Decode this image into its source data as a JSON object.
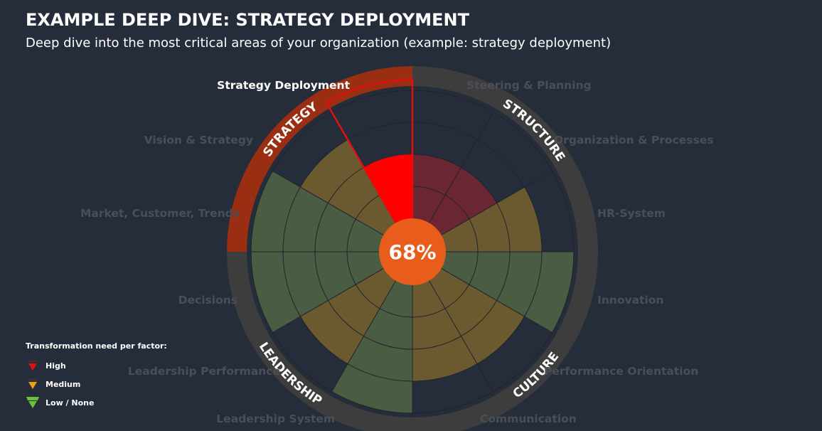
{
  "header": {
    "title": "EXAMPLE DEEP DIVE: STRATEGY DEPLOYMENT",
    "subtitle": "Deep dive into the most critical areas of your organization (example: strategy deployment)"
  },
  "legend": {
    "title": "Transformation need per factor:",
    "items": [
      {
        "label": "High",
        "color": "#e01010"
      },
      {
        "label": "Medium",
        "color": "#f0a010"
      },
      {
        "label": "Low / None",
        "color": "#6cbf3a"
      }
    ]
  },
  "colors": {
    "background": "#262d3a",
    "ring": "#3d3d3d",
    "strategy_ring": "#9a2e12",
    "center": "#e85d1c",
    "high": "#ff0000",
    "high_dim": "#6b2633",
    "medium": "#6b5a30",
    "low": "#4a5c42",
    "highlight_border": "#e01010"
  },
  "chart_data": {
    "type": "polar-area",
    "center_value": "68%",
    "selected_factor": "Strategy Deployment",
    "ring_levels": 4,
    "groups": [
      {
        "name": "STRATEGY",
        "factors": [
          "Market, Customer, Trends",
          "Vision & Strategy",
          "Strategy Deployment"
        ]
      },
      {
        "name": "STRUCTURE",
        "factors": [
          "Steering & Planning",
          "Organization & Processes",
          "HR-System"
        ]
      },
      {
        "name": "CULTURE",
        "factors": [
          "Innovation",
          "Performance Orientation",
          "Communication"
        ]
      },
      {
        "name": "LEADERSHIP",
        "factors": [
          "Leadership System",
          "Leadership Performance",
          "Decisions"
        ]
      }
    ],
    "factors": [
      {
        "name": "Strategy Deployment",
        "level": 2,
        "need": "High"
      },
      {
        "name": "Steering & Planning",
        "level": 2,
        "need": "High"
      },
      {
        "name": "Organization & Processes",
        "level": 2,
        "need": "High"
      },
      {
        "name": "HR-System",
        "level": 3,
        "need": "Medium"
      },
      {
        "name": "Innovation",
        "level": 4,
        "need": "Low / None"
      },
      {
        "name": "Performance Orientation",
        "level": 3,
        "need": "Medium"
      },
      {
        "name": "Communication",
        "level": 3,
        "need": "Medium"
      },
      {
        "name": "Leadership System",
        "level": 4,
        "need": "Low / None"
      },
      {
        "name": "Leadership Performance",
        "level": 3,
        "need": "Medium"
      },
      {
        "name": "Decisions",
        "level": 4,
        "need": "Low / None"
      },
      {
        "name": "Market, Customer, Trends",
        "level": 4,
        "need": "Low / None"
      },
      {
        "name": "Vision & Strategy",
        "level": 3,
        "need": "Medium"
      }
    ]
  }
}
